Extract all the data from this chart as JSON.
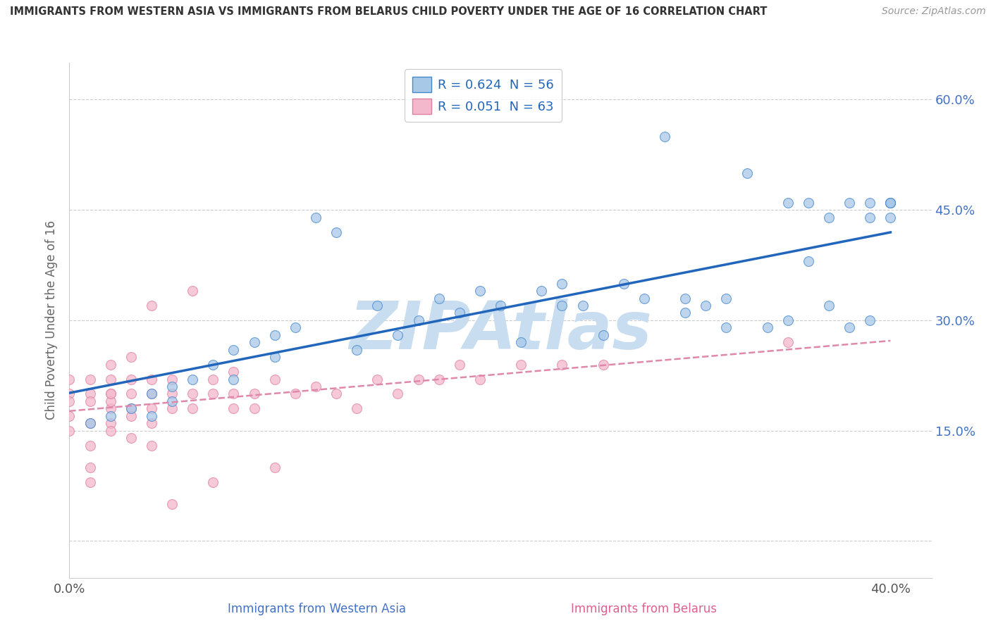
{
  "title": "IMMIGRANTS FROM WESTERN ASIA VS IMMIGRANTS FROM BELARUS CHILD POVERTY UNDER THE AGE OF 16 CORRELATION CHART",
  "source": "Source: ZipAtlas.com",
  "ylabel": "Child Poverty Under the Age of 16",
  "xlim": [
    0.0,
    0.42
  ],
  "ylim": [
    -0.05,
    0.65
  ],
  "legend_blue_label": "R = 0.624  N = 56",
  "legend_pink_label": "R = 0.051  N = 63",
  "blue_color": "#a8c8e8",
  "pink_color": "#f4b8cc",
  "blue_edge_color": "#4488cc",
  "pink_edge_color": "#e080a0",
  "blue_line_color": "#2266bb",
  "pink_line_color": "#e088aa",
  "watermark": "ZIPAtlas",
  "watermark_color": "#c8ddf0",
  "series1_label": "Immigrants from Western Asia",
  "series2_label": "Immigrants from Belarus",
  "blue_x": [
    0.01,
    0.02,
    0.03,
    0.04,
    0.04,
    0.05,
    0.05,
    0.06,
    0.07,
    0.08,
    0.08,
    0.09,
    0.1,
    0.1,
    0.11,
    0.12,
    0.13,
    0.14,
    0.15,
    0.16,
    0.17,
    0.18,
    0.19,
    0.2,
    0.21,
    0.22,
    0.23,
    0.24,
    0.24,
    0.25,
    0.26,
    0.27,
    0.28,
    0.29,
    0.3,
    0.3,
    0.31,
    0.32,
    0.32,
    0.33,
    0.34,
    0.35,
    0.35,
    0.36,
    0.36,
    0.37,
    0.37,
    0.38,
    0.38,
    0.39,
    0.39,
    0.39,
    0.4,
    0.4,
    0.4,
    0.4
  ],
  "blue_y": [
    0.16,
    0.17,
    0.18,
    0.2,
    0.17,
    0.19,
    0.21,
    0.22,
    0.24,
    0.22,
    0.26,
    0.27,
    0.25,
    0.28,
    0.29,
    0.44,
    0.42,
    0.26,
    0.32,
    0.28,
    0.3,
    0.33,
    0.31,
    0.34,
    0.32,
    0.27,
    0.34,
    0.32,
    0.35,
    0.32,
    0.28,
    0.35,
    0.33,
    0.55,
    0.33,
    0.31,
    0.32,
    0.29,
    0.33,
    0.5,
    0.29,
    0.46,
    0.3,
    0.46,
    0.38,
    0.32,
    0.44,
    0.29,
    0.46,
    0.44,
    0.46,
    0.3,
    0.44,
    0.46,
    0.46,
    0.46
  ],
  "pink_x": [
    0.0,
    0.0,
    0.0,
    0.0,
    0.0,
    0.01,
    0.01,
    0.01,
    0.01,
    0.01,
    0.01,
    0.01,
    0.02,
    0.02,
    0.02,
    0.02,
    0.02,
    0.02,
    0.02,
    0.02,
    0.03,
    0.03,
    0.03,
    0.03,
    0.03,
    0.03,
    0.04,
    0.04,
    0.04,
    0.04,
    0.04,
    0.04,
    0.05,
    0.05,
    0.05,
    0.05,
    0.06,
    0.06,
    0.06,
    0.07,
    0.07,
    0.07,
    0.08,
    0.08,
    0.08,
    0.09,
    0.09,
    0.1,
    0.1,
    0.11,
    0.12,
    0.13,
    0.14,
    0.15,
    0.16,
    0.17,
    0.18,
    0.19,
    0.2,
    0.22,
    0.24,
    0.26,
    0.35
  ],
  "pink_y": [
    0.2,
    0.22,
    0.19,
    0.15,
    0.17,
    0.2,
    0.16,
    0.19,
    0.13,
    0.22,
    0.1,
    0.08,
    0.18,
    0.2,
    0.16,
    0.22,
    0.19,
    0.15,
    0.2,
    0.24,
    0.18,
    0.2,
    0.25,
    0.22,
    0.17,
    0.14,
    0.2,
    0.18,
    0.22,
    0.16,
    0.13,
    0.32,
    0.2,
    0.18,
    0.22,
    0.05,
    0.34,
    0.2,
    0.18,
    0.22,
    0.2,
    0.08,
    0.2,
    0.18,
    0.23,
    0.2,
    0.18,
    0.22,
    0.1,
    0.2,
    0.21,
    0.2,
    0.18,
    0.22,
    0.2,
    0.22,
    0.22,
    0.24,
    0.22,
    0.24,
    0.24,
    0.24,
    0.27
  ]
}
